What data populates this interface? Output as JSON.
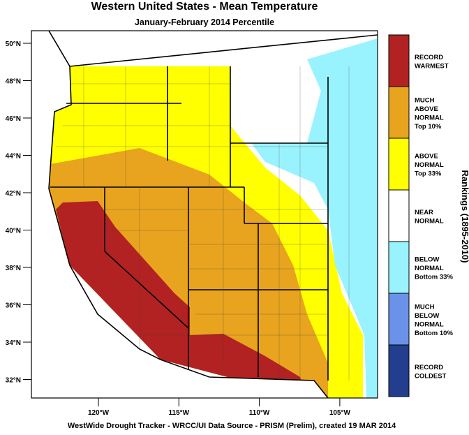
{
  "header": {
    "title": "Western United States - Mean Temperature",
    "subtitle": "January-February 2014 Percentile"
  },
  "map": {
    "lat_labels": [
      "50°N",
      "48°N",
      "46°N",
      "44°N",
      "42°N",
      "40°N",
      "38°N",
      "36°N",
      "34°N",
      "32°N"
    ],
    "lon_labels": [
      "120°W",
      "115°W",
      "110°W",
      "105°W"
    ]
  },
  "legend": {
    "title": "Rankings (1895-2010)",
    "items": [
      {
        "lines": [
          "RECORD",
          "WARMEST"
        ],
        "color": "#b22222"
      },
      {
        "lines": [
          "MUCH",
          "ABOVE",
          "NORMAL",
          "Top 10%"
        ],
        "color": "#e8a41e"
      },
      {
        "lines": [
          "ABOVE",
          "NORMAL",
          "Top 33%"
        ],
        "color": "#ffff00"
      },
      {
        "lines": [
          "NEAR",
          "NORMAL"
        ],
        "color": "#ffffff"
      },
      {
        "lines": [
          "BELOW",
          "NORMAL",
          "Bottom 33%"
        ],
        "color": "#99f3ff"
      },
      {
        "lines": [
          "MUCH",
          "BELOW",
          "NORMAL",
          "Bottom 10%"
        ],
        "color": "#6a92e8"
      },
      {
        "lines": [
          "RECORD",
          "COLDEST"
        ],
        "color": "#233e8f"
      }
    ]
  },
  "footer": "WestWide Drought Tracker - WRCC/UI  Data Source - PRISM (Prelim), created 19 MAR 2014"
}
